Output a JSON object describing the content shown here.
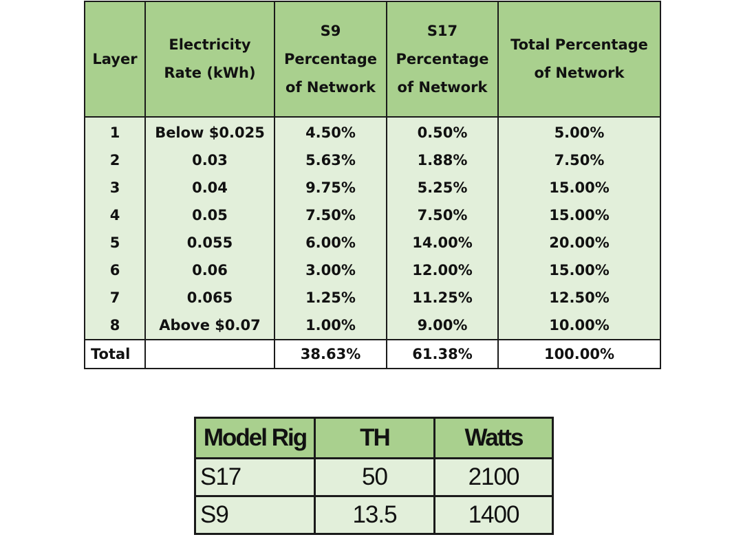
{
  "main_table": {
    "headers": [
      "Layer",
      "Electricity Rate (kWh)",
      "S9 Percentage of Network",
      "S17 Percentage of Network",
      "Total Percentage of Network"
    ],
    "rows": [
      {
        "layer": "1",
        "rate": "Below $0.025",
        "s9": "4.50%",
        "s17": "0.50%",
        "total": "5.00%"
      },
      {
        "layer": "2",
        "rate": "0.03",
        "s9": "5.63%",
        "s17": "1.88%",
        "total": "7.50%"
      },
      {
        "layer": "3",
        "rate": "0.04",
        "s9": "9.75%",
        "s17": "5.25%",
        "total": "15.00%"
      },
      {
        "layer": "4",
        "rate": "0.05",
        "s9": "7.50%",
        "s17": "7.50%",
        "total": "15.00%"
      },
      {
        "layer": "5",
        "rate": "0.055",
        "s9": "6.00%",
        "s17": "14.00%",
        "total": "20.00%"
      },
      {
        "layer": "6",
        "rate": "0.06",
        "s9": "3.00%",
        "s17": "12.00%",
        "total": "15.00%"
      },
      {
        "layer": "7",
        "rate": "0.065",
        "s9": "1.25%",
        "s17": "11.25%",
        "total": "12.50%"
      },
      {
        "layer": "8",
        "rate": "Above $0.07",
        "s9": "1.00%",
        "s17": "9.00%",
        "total": "10.00%"
      }
    ],
    "total_row": {
      "label": "Total",
      "rate": "",
      "s9": "38.63%",
      "s17": "61.38%",
      "total": "100.00%"
    },
    "colors": {
      "header_bg": "#a9d08e",
      "body_bg": "#e2efda"
    }
  },
  "rig_table": {
    "headers": [
      "Model Rig",
      "TH",
      "Watts"
    ],
    "rows": [
      {
        "model": "S17",
        "th": "50",
        "watts": "2100"
      },
      {
        "model": "S9",
        "th": "13.5",
        "watts": "1400"
      }
    ]
  }
}
